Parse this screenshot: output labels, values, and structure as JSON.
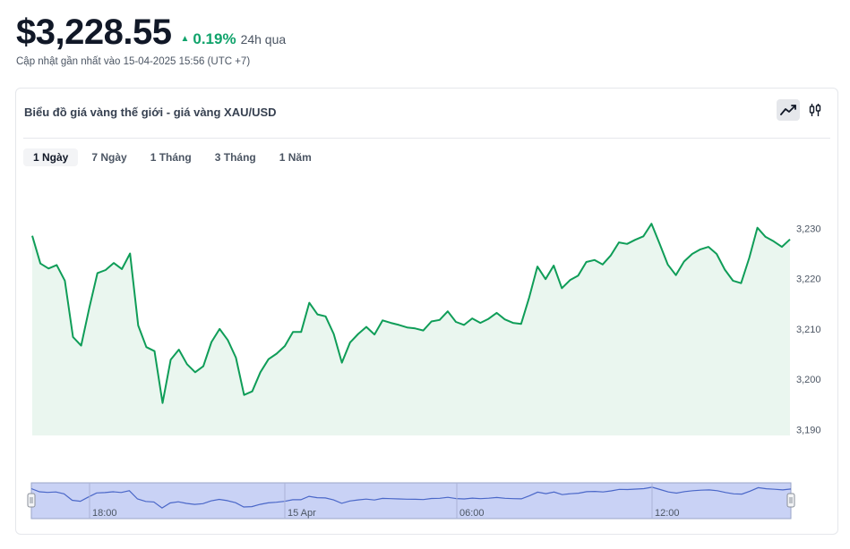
{
  "header": {
    "price": "$3,228.55",
    "change_percent": "0.19%",
    "change_label": "24h qua",
    "change_direction": "up",
    "updated": "Cập nhật gần nhất vào 15-04-2025 15:56 (UTC +7)"
  },
  "card": {
    "title": "Biểu đồ giá vàng thế giới - giá vàng XAU/USD",
    "chart_types": [
      {
        "icon": "line-chart-icon",
        "active": true
      },
      {
        "icon": "candlestick-icon",
        "active": false
      }
    ],
    "tabs": [
      {
        "label": "1 Ngày",
        "active": true
      },
      {
        "label": "7 Ngày",
        "active": false
      },
      {
        "label": "1 Tháng",
        "active": false
      },
      {
        "label": "3 Tháng",
        "active": false
      },
      {
        "label": "1 Năm",
        "active": false
      }
    ]
  },
  "colors": {
    "line": "#0f9d58",
    "area": "#eaf6ef",
    "up": "#10a36b",
    "navigator_fill": "#c9d2f5",
    "navigator_line": "#4a67c8",
    "navigator_border": "#9aa6c8"
  },
  "chart_data": {
    "type": "area",
    "title": "",
    "xlabel": "",
    "ylabel": "",
    "ylim": [
      3190,
      3233
    ],
    "yticks": [
      3190,
      3200,
      3210,
      3220,
      3230
    ],
    "ytick_labels": [
      "3,190",
      "3,200",
      "3,210",
      "3,220",
      "3,230"
    ],
    "grid": false,
    "series": [
      {
        "values": [
          3228.5,
          3223,
          3222,
          3222.7,
          3219.6,
          3208.4,
          3206.7,
          3214.2,
          3221.1,
          3221.7,
          3223.1,
          3221.9,
          3225,
          3210.7,
          3206.4,
          3205.6,
          3195.3,
          3203.9,
          3205.9,
          3203,
          3201.4,
          3202.6,
          3207.4,
          3210,
          3207.8,
          3204.3,
          3196.9,
          3197.6,
          3201.4,
          3204,
          3205.1,
          3206.6,
          3209.4,
          3209.4,
          3215.2,
          3212.9,
          3212.5,
          3209,
          3203.3,
          3207.3,
          3209,
          3210.4,
          3208.9,
          3211.7,
          3211.2,
          3210.8,
          3210.3,
          3210.1,
          3209.7,
          3211.5,
          3211.8,
          3213.5,
          3211.4,
          3210.8,
          3212.1,
          3211.2,
          3212,
          3213.2,
          3211.9,
          3211.2,
          3211,
          3216.3,
          3222.4,
          3219.9,
          3222.6,
          3218.1,
          3219.7,
          3220.6,
          3223.3,
          3223.7,
          3222.8,
          3224.6,
          3227.2,
          3226.9,
          3227.7,
          3228.4,
          3230.9,
          3226.9,
          3222.8,
          3220.7,
          3223.4,
          3224.9,
          3225.8,
          3226.3,
          3224.9,
          3221.8,
          3219.6,
          3219.1,
          3224.1,
          3230.1,
          3228.3,
          3227.4,
          3226.3,
          3227.8
        ]
      }
    ],
    "navigator": {
      "time_labels": [
        "18:00",
        "15 Apr",
        "06:00",
        "12:00"
      ]
    }
  }
}
